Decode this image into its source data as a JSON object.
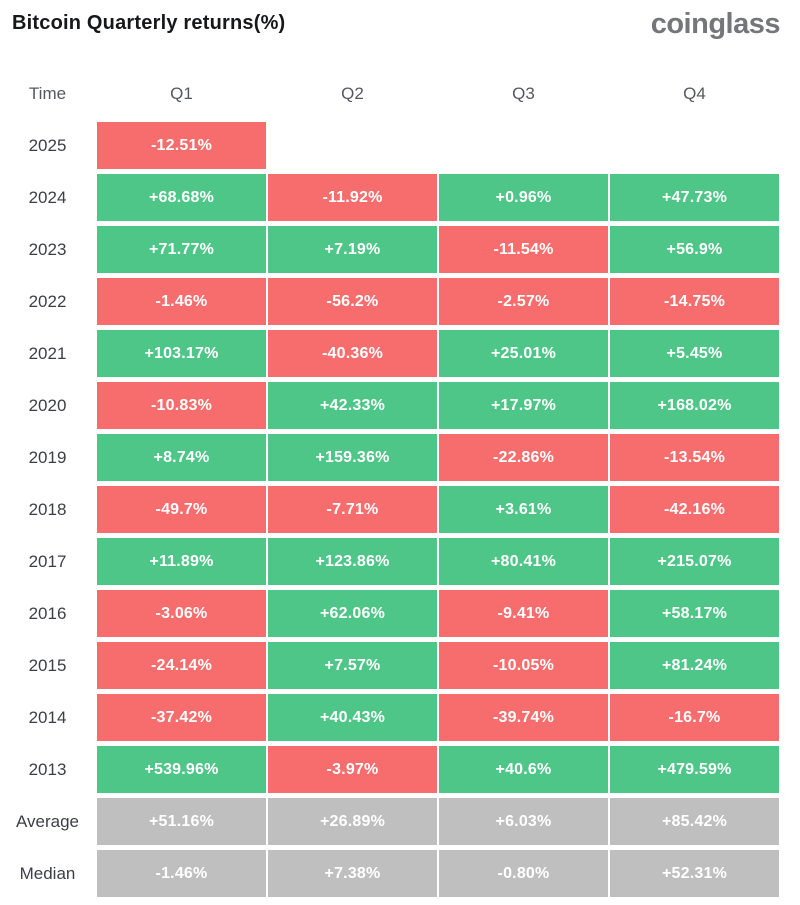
{
  "header": {
    "title": "Bitcoin Quarterly returns(%)",
    "logo": "coinglass"
  },
  "palette": {
    "bg": "#ffffff",
    "green": "#4ec687",
    "red": "#f76d6d",
    "gray": "#bfbfbf",
    "cell_text": "#ffffff",
    "label": "#3c3f45",
    "header_text": "#55585c",
    "title": "#17181a",
    "logo": "#75767a"
  },
  "table": {
    "columns": [
      "Time",
      "Q1",
      "Q2",
      "Q3",
      "Q4"
    ],
    "rows": [
      {
        "label": "2025",
        "cells": [
          {
            "value": "-12.51%",
            "tone": "red"
          },
          {
            "value": "",
            "tone": "empty"
          },
          {
            "value": "",
            "tone": "empty"
          },
          {
            "value": "",
            "tone": "empty"
          }
        ]
      },
      {
        "label": "2024",
        "cells": [
          {
            "value": "+68.68%",
            "tone": "green"
          },
          {
            "value": "-11.92%",
            "tone": "red"
          },
          {
            "value": "+0.96%",
            "tone": "green"
          },
          {
            "value": "+47.73%",
            "tone": "green"
          }
        ]
      },
      {
        "label": "2023",
        "cells": [
          {
            "value": "+71.77%",
            "tone": "green"
          },
          {
            "value": "+7.19%",
            "tone": "green"
          },
          {
            "value": "-11.54%",
            "tone": "red"
          },
          {
            "value": "+56.9%",
            "tone": "green"
          }
        ]
      },
      {
        "label": "2022",
        "cells": [
          {
            "value": "-1.46%",
            "tone": "red"
          },
          {
            "value": "-56.2%",
            "tone": "red"
          },
          {
            "value": "-2.57%",
            "tone": "red"
          },
          {
            "value": "-14.75%",
            "tone": "red"
          }
        ]
      },
      {
        "label": "2021",
        "cells": [
          {
            "value": "+103.17%",
            "tone": "green"
          },
          {
            "value": "-40.36%",
            "tone": "red"
          },
          {
            "value": "+25.01%",
            "tone": "green"
          },
          {
            "value": "+5.45%",
            "tone": "green"
          }
        ]
      },
      {
        "label": "2020",
        "cells": [
          {
            "value": "-10.83%",
            "tone": "red"
          },
          {
            "value": "+42.33%",
            "tone": "green"
          },
          {
            "value": "+17.97%",
            "tone": "green"
          },
          {
            "value": "+168.02%",
            "tone": "green"
          }
        ]
      },
      {
        "label": "2019",
        "cells": [
          {
            "value": "+8.74%",
            "tone": "green"
          },
          {
            "value": "+159.36%",
            "tone": "green"
          },
          {
            "value": "-22.86%",
            "tone": "red"
          },
          {
            "value": "-13.54%",
            "tone": "red"
          }
        ]
      },
      {
        "label": "2018",
        "cells": [
          {
            "value": "-49.7%",
            "tone": "red"
          },
          {
            "value": "-7.71%",
            "tone": "red"
          },
          {
            "value": "+3.61%",
            "tone": "green"
          },
          {
            "value": "-42.16%",
            "tone": "red"
          }
        ]
      },
      {
        "label": "2017",
        "cells": [
          {
            "value": "+11.89%",
            "tone": "green"
          },
          {
            "value": "+123.86%",
            "tone": "green"
          },
          {
            "value": "+80.41%",
            "tone": "green"
          },
          {
            "value": "+215.07%",
            "tone": "green"
          }
        ]
      },
      {
        "label": "2016",
        "cells": [
          {
            "value": "-3.06%",
            "tone": "red"
          },
          {
            "value": "+62.06%",
            "tone": "green"
          },
          {
            "value": "-9.41%",
            "tone": "red"
          },
          {
            "value": "+58.17%",
            "tone": "green"
          }
        ]
      },
      {
        "label": "2015",
        "cells": [
          {
            "value": "-24.14%",
            "tone": "red"
          },
          {
            "value": "+7.57%",
            "tone": "green"
          },
          {
            "value": "-10.05%",
            "tone": "red"
          },
          {
            "value": "+81.24%",
            "tone": "green"
          }
        ]
      },
      {
        "label": "2014",
        "cells": [
          {
            "value": "-37.42%",
            "tone": "red"
          },
          {
            "value": "+40.43%",
            "tone": "green"
          },
          {
            "value": "-39.74%",
            "tone": "red"
          },
          {
            "value": "-16.7%",
            "tone": "red"
          }
        ]
      },
      {
        "label": "2013",
        "cells": [
          {
            "value": "+539.96%",
            "tone": "green"
          },
          {
            "value": "-3.97%",
            "tone": "red"
          },
          {
            "value": "+40.6%",
            "tone": "green"
          },
          {
            "value": "+479.59%",
            "tone": "green"
          }
        ]
      },
      {
        "label": "Average",
        "cells": [
          {
            "value": "+51.16%",
            "tone": "gray"
          },
          {
            "value": "+26.89%",
            "tone": "gray"
          },
          {
            "value": "+6.03%",
            "tone": "gray"
          },
          {
            "value": "+85.42%",
            "tone": "gray"
          }
        ]
      },
      {
        "label": "Median",
        "cells": [
          {
            "value": "-1.46%",
            "tone": "gray"
          },
          {
            "value": "+7.38%",
            "tone": "gray"
          },
          {
            "value": "-0.80%",
            "tone": "gray"
          },
          {
            "value": "+52.31%",
            "tone": "gray"
          }
        ]
      }
    ]
  },
  "chart_data": {
    "type": "heatmap",
    "title": "Bitcoin Quarterly returns(%)",
    "columns": [
      "Q1",
      "Q2",
      "Q3",
      "Q4"
    ],
    "rows": [
      "2025",
      "2024",
      "2023",
      "2022",
      "2021",
      "2020",
      "2019",
      "2018",
      "2017",
      "2016",
      "2015",
      "2014",
      "2013",
      "Average",
      "Median"
    ],
    "values": [
      [
        -12.51,
        null,
        null,
        null
      ],
      [
        68.68,
        -11.92,
        0.96,
        47.73
      ],
      [
        71.77,
        7.19,
        -11.54,
        56.9
      ],
      [
        -1.46,
        -56.2,
        -2.57,
        -14.75
      ],
      [
        103.17,
        -40.36,
        25.01,
        5.45
      ],
      [
        -10.83,
        42.33,
        17.97,
        168.02
      ],
      [
        8.74,
        159.36,
        -22.86,
        -13.54
      ],
      [
        -49.7,
        -7.71,
        3.61,
        -42.16
      ],
      [
        11.89,
        123.86,
        80.41,
        215.07
      ],
      [
        -3.06,
        62.06,
        -9.41,
        58.17
      ],
      [
        -24.14,
        7.57,
        -10.05,
        81.24
      ],
      [
        -37.42,
        40.43,
        -39.74,
        -16.7
      ],
      [
        539.96,
        -3.97,
        40.6,
        479.59
      ],
      [
        51.16,
        26.89,
        6.03,
        85.42
      ],
      [
        -1.46,
        7.38,
        -0.8,
        52.31
      ]
    ],
    "unit": "%",
    "color_rule": "positive=green, negative=red, summary rows (Average/Median)=gray",
    "legend": "none",
    "grid": false
  }
}
